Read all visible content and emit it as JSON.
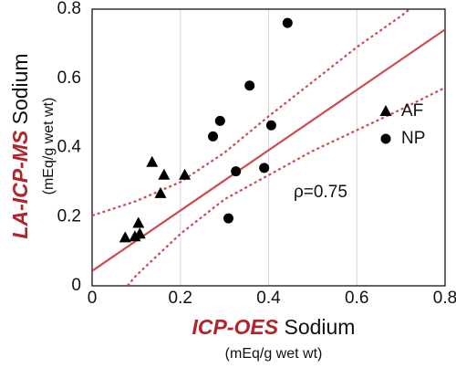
{
  "chart_data": {
    "type": "scatter",
    "x_label": {
      "highlight": "ICP-OES",
      "rest": " Sodium",
      "units": "(mEq/g wet wt)"
    },
    "y_label": {
      "highlight": "LA-ICP-MS",
      "rest": " Sodium",
      "units": "(mEq/g wet wt)"
    },
    "annotation": "ρ=0.75",
    "xlim": [
      0,
      0.8
    ],
    "ylim": [
      0,
      0.8
    ],
    "xticks": [
      0,
      0.2,
      0.4,
      0.6,
      0.8
    ],
    "yticks": [
      0,
      0.2,
      0.4,
      0.6,
      0.8
    ],
    "grid": "x",
    "legend": "upper right",
    "series": [
      {
        "name": "AF",
        "marker": "triangle",
        "color": "#000000",
        "x": [
          0.105,
          0.136,
          0.163,
          0.155,
          0.21,
          0.075,
          0.097,
          0.108
        ],
        "y": [
          0.181,
          0.357,
          0.32,
          0.267,
          0.32,
          0.139,
          0.142,
          0.15
        ]
      },
      {
        "name": "NP",
        "marker": "circle",
        "color": "#000000",
        "x": [
          0.443,
          0.357,
          0.29,
          0.274,
          0.406,
          0.326,
          0.39,
          0.309
        ],
        "y": [
          0.76,
          0.579,
          0.477,
          0.432,
          0.464,
          0.331,
          0.341,
          0.195
        ]
      }
    ],
    "lines": [
      {
        "style": "solid",
        "color": "#d04a50",
        "x": [
          0,
          0.8
        ],
        "y": [
          0.043,
          0.741
        ]
      },
      {
        "style": "dotted",
        "color": "#d04a50",
        "x": [
          0,
          0.1,
          0.2,
          0.3,
          0.4,
          0.5,
          0.6,
          0.7,
          0.72
        ],
        "y": [
          0.203,
          0.245,
          0.3,
          0.385,
          0.49,
          0.59,
          0.69,
          0.78,
          0.8
        ]
      },
      {
        "style": "dotted",
        "color": "#d04a50",
        "x": [
          0.08,
          0.1,
          0.2,
          0.3,
          0.4,
          0.5,
          0.6,
          0.7,
          0.8
        ],
        "y": [
          0,
          0.03,
          0.15,
          0.25,
          0.32,
          0.39,
          0.45,
          0.51,
          0.573
        ]
      }
    ]
  }
}
